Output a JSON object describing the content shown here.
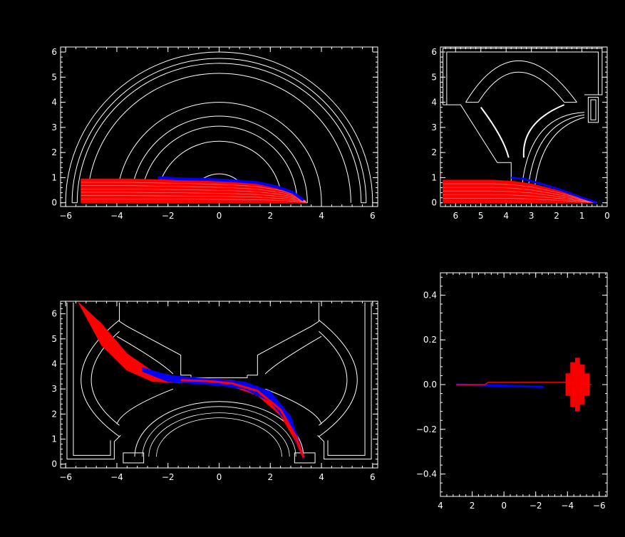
{
  "figure": {
    "background": "#000000",
    "axis_color": "#ffffff",
    "structure_color": "#ffffff",
    "series_colors": {
      "red": "#ff0000",
      "blue": "#0000ff"
    }
  },
  "chart_data": [
    {
      "id": "panel-top-left",
      "type": "line",
      "title": "",
      "xlabel": "",
      "ylabel": "",
      "xlim": [
        -6.2,
        6.2
      ],
      "ylim": [
        -0.15,
        6.2
      ],
      "xticks": [
        -6,
        -4,
        -2,
        0,
        2,
        4,
        6
      ],
      "xtick_labels": [
        "−6",
        "−4",
        "−2",
        "0",
        "2",
        "4",
        "6"
      ],
      "yticks": [
        0,
        1,
        2,
        3,
        4,
        5,
        6
      ],
      "ytick_labels": [
        "0",
        "1",
        "2",
        "3",
        "4",
        "5",
        "6"
      ],
      "structure": {
        "semicircle_radii": [
          6.0,
          5.75,
          5.55,
          5.15,
          4.0,
          3.45,
          3.05,
          2.45,
          1.15,
          0.9
        ]
      },
      "series": [
        {
          "color": "red",
          "x": [
            -5.4,
            -4.5,
            -3.5,
            -2.5,
            -1.5,
            -0.5,
            0.5,
            1.5,
            2.5,
            3.1,
            3.4
          ],
          "y_top": [
            0.95,
            0.95,
            0.95,
            0.92,
            0.9,
            0.87,
            0.83,
            0.75,
            0.55,
            0.3,
            0.05
          ],
          "y_bottom": [
            0.0,
            0.0,
            0.0,
            0.0,
            0.0,
            0.0,
            0.0,
            0.0,
            0.0,
            0.0,
            0.0
          ]
        },
        {
          "color": "blue",
          "x": [
            -2.4,
            -1.5,
            -0.5,
            0.5,
            1.5,
            2.3,
            2.9,
            3.3
          ],
          "y": [
            1.0,
            0.95,
            0.93,
            0.88,
            0.8,
            0.62,
            0.4,
            0.1
          ]
        }
      ]
    },
    {
      "id": "panel-top-right",
      "type": "line",
      "title": "",
      "xlabel": "",
      "ylabel": "",
      "xlim": [
        6.6,
        0.0
      ],
      "ylim": [
        -0.15,
        6.2
      ],
      "xticks": [
        6,
        5,
        4,
        3,
        2,
        1,
        0
      ],
      "xtick_labels": [
        "6",
        "5",
        "4",
        "3",
        "2",
        "1",
        "0"
      ],
      "yticks": [
        0,
        1,
        2,
        3,
        4,
        5,
        6
      ],
      "ytick_labels": [
        "0",
        "1",
        "2",
        "3",
        "4",
        "5",
        "6"
      ],
      "series": [
        {
          "color": "red",
          "x": [
            6.5,
            5.5,
            4.5,
            3.7,
            3.0,
            2.0,
            1.0,
            0.4
          ],
          "y_top": [
            0.9,
            0.9,
            0.9,
            0.85,
            0.75,
            0.5,
            0.2,
            0.0
          ],
          "y_bottom": [
            0.0,
            0.0,
            0.0,
            0.0,
            0.0,
            0.0,
            0.0,
            0.0
          ]
        },
        {
          "color": "blue",
          "x": [
            3.8,
            3.3,
            2.6,
            1.8,
            1.0,
            0.4
          ],
          "y": [
            1.0,
            0.95,
            0.75,
            0.5,
            0.2,
            0.0
          ]
        }
      ]
    },
    {
      "id": "panel-bottom-left",
      "type": "line",
      "title": "",
      "xlabel": "",
      "ylabel": "",
      "xlim": [
        -6.2,
        6.2
      ],
      "ylim": [
        -0.15,
        6.5
      ],
      "xticks": [
        -6,
        -4,
        -2,
        0,
        2,
        4,
        6
      ],
      "xtick_labels": [
        "−6",
        "−4",
        "−2",
        "0",
        "2",
        "4",
        "6"
      ],
      "yticks": [
        0,
        1,
        2,
        3,
        4,
        5,
        6
      ],
      "ytick_labels": [
        "0",
        "1",
        "2",
        "3",
        "4",
        "5",
        "6"
      ],
      "series": [
        {
          "color": "red",
          "x": [
            -5.5,
            -4.6,
            -3.6,
            -2.6,
            -1.5,
            -0.5,
            0.5,
            1.5,
            2.4,
            3.0,
            3.3
          ],
          "y_top": [
            6.45,
            5.6,
            4.4,
            3.7,
            3.45,
            3.42,
            3.35,
            3.1,
            2.4,
            1.3,
            0.35
          ],
          "y_bottom": [
            6.45,
            4.75,
            3.75,
            3.3,
            3.25,
            3.22,
            3.1,
            2.75,
            1.95,
            0.9,
            0.2
          ]
        },
        {
          "color": "blue",
          "x": [
            -3.0,
            -2.0,
            -1.0,
            0.0,
            1.0,
            2.0,
            2.8,
            3.3
          ],
          "y_top": [
            3.85,
            3.55,
            3.45,
            3.38,
            3.28,
            2.9,
            1.9,
            0.35
          ],
          "y_bottom": [
            3.7,
            3.3,
            3.22,
            3.15,
            3.0,
            2.5,
            1.5,
            0.2
          ]
        }
      ]
    },
    {
      "id": "panel-bottom-right",
      "type": "line",
      "title": "",
      "xlabel": "",
      "ylabel": "",
      "xlim": [
        4.0,
        -6.5
      ],
      "ylim": [
        -0.5,
        0.5
      ],
      "xticks": [
        4,
        2,
        0,
        -2,
        -4,
        -6
      ],
      "xtick_labels": [
        "4",
        "2",
        "0",
        "−2",
        "−4",
        "−6"
      ],
      "yticks": [
        -0.4,
        -0.2,
        0.0,
        0.2,
        0.4
      ],
      "ytick_labels": [
        "−0.4",
        "−0.2",
        "0.0",
        "0.2",
        "0.4"
      ],
      "series": [
        {
          "color": "blue",
          "x": [
            3.0,
            -2.5
          ],
          "y": [
            0.0,
            -0.01
          ]
        },
        {
          "color": "red",
          "x": [
            3.0,
            1.2,
            1.0,
            -3.8,
            -5.5
          ],
          "y": [
            0.0,
            0.0,
            0.01,
            0.01,
            0.0
          ]
        },
        {
          "color": "red",
          "x": [
            -3.9,
            -4.2,
            -4.5,
            -4.8,
            -5.1,
            -5.4
          ],
          "y_amp": [
            0.05,
            0.1,
            0.12,
            0.09,
            0.05,
            0.02
          ]
        }
      ]
    }
  ]
}
